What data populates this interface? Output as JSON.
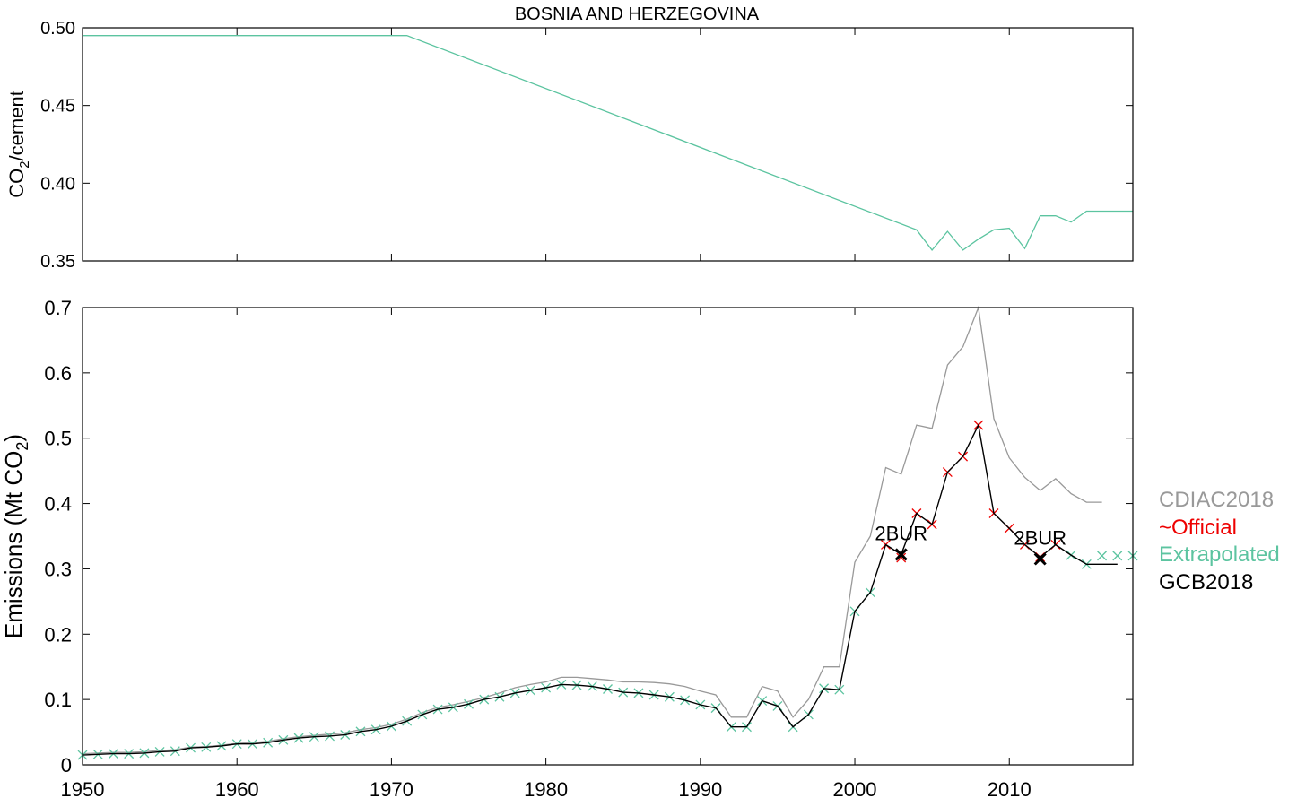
{
  "chart_data": [
    {
      "type": "line",
      "title": "BOSNIA  AND HERZEGOVINA",
      "ylabel": "CO2/cement",
      "ylabel_main": "CO",
      "ylabel_sub": "2",
      "ylabel_rest": "/cement",
      "xlim": [
        1950,
        2018
      ],
      "ylim": [
        0.35,
        0.5
      ],
      "yticks": [
        "0.35",
        "0.40",
        "0.45",
        "0.50"
      ],
      "ytick_values": [
        0.35,
        0.4,
        0.45,
        0.5
      ],
      "grid": false,
      "series": [
        {
          "color": "#5cc4a0",
          "x": [
            1950,
            1971,
            2004,
            2005,
            2006,
            2007,
            2008,
            2009,
            2010,
            2011,
            2012,
            2013,
            2014,
            2015,
            2016,
            2017,
            2018
          ],
          "y": [
            0.495,
            0.495,
            0.37,
            0.357,
            0.369,
            0.357,
            0.364,
            0.37,
            0.371,
            0.358,
            0.379,
            0.379,
            0.375,
            0.382,
            0.382,
            0.382,
            0.382
          ]
        }
      ]
    },
    {
      "type": "line",
      "ylabel": "Emissions (Mt CO2)",
      "ylabel_main": "Emissions (Mt CO",
      "ylabel_sub": "2",
      "ylabel_rest": ")",
      "xlim": [
        1950,
        2018
      ],
      "ylim": [
        0,
        0.7
      ],
      "xticks": [
        "1950",
        "1960",
        "1970",
        "1980",
        "1990",
        "2000",
        "2010"
      ],
      "xtick_values": [
        1950,
        1960,
        1970,
        1980,
        1990,
        2000,
        2010
      ],
      "yticks": [
        "0",
        "0.1",
        "0.2",
        "0.3",
        "0.4",
        "0.5",
        "0.6",
        "0.7"
      ],
      "ytick_values": [
        0,
        0.1,
        0.2,
        0.3,
        0.4,
        0.5,
        0.6,
        0.7
      ],
      "grid": false,
      "legend_position": "right",
      "series": [
        {
          "name": "CDIAC2018",
          "color": "#999999",
          "x": [
            1950,
            1951,
            1952,
            1953,
            1954,
            1955,
            1956,
            1957,
            1958,
            1959,
            1960,
            1961,
            1962,
            1963,
            1964,
            1965,
            1966,
            1967,
            1968,
            1969,
            1970,
            1971,
            1972,
            1973,
            1974,
            1975,
            1976,
            1977,
            1978,
            1979,
            1980,
            1981,
            1982,
            1983,
            1984,
            1985,
            1986,
            1987,
            1988,
            1989,
            1990,
            1991,
            1992,
            1993,
            1994,
            1995,
            1996,
            1997,
            1998,
            1999,
            2000,
            2001,
            2002,
            2003,
            2004,
            2005,
            2006,
            2007,
            2008,
            2009,
            2010,
            2011,
            2012,
            2013,
            2014,
            2015,
            2016
          ],
          "y": [
            0.017,
            0.018,
            0.019,
            0.019,
            0.02,
            0.022,
            0.023,
            0.027,
            0.028,
            0.03,
            0.033,
            0.034,
            0.036,
            0.04,
            0.043,
            0.045,
            0.047,
            0.049,
            0.054,
            0.057,
            0.062,
            0.07,
            0.08,
            0.088,
            0.092,
            0.097,
            0.103,
            0.11,
            0.118,
            0.123,
            0.127,
            0.134,
            0.134,
            0.132,
            0.13,
            0.127,
            0.127,
            0.126,
            0.124,
            0.12,
            0.113,
            0.107,
            0.073,
            0.073,
            0.12,
            0.113,
            0.073,
            0.1,
            0.15,
            0.15,
            0.31,
            0.35,
            0.455,
            0.445,
            0.52,
            0.515,
            0.612,
            0.64,
            0.7,
            0.53,
            0.47,
            0.44,
            0.42,
            0.438,
            0.415,
            0.402,
            0.402
          ]
        },
        {
          "name": "~Official",
          "color": "#ee0000",
          "x": [
            2002,
            2003,
            2004,
            2005,
            2006,
            2007,
            2008,
            2009,
            2010,
            2011,
            2012,
            2013
          ],
          "y": [
            0.337,
            0.317,
            0.385,
            0.368,
            0.448,
            0.472,
            0.52,
            0.385,
            0.362,
            0.337,
            0.318,
            0.337
          ]
        },
        {
          "name": "Extrapolated",
          "color": "#5cc4a0",
          "x": [
            1950,
            1951,
            1952,
            1953,
            1954,
            1955,
            1956,
            1957,
            1958,
            1959,
            1960,
            1961,
            1962,
            1963,
            1964,
            1965,
            1966,
            1967,
            1968,
            1969,
            1970,
            1971,
            1972,
            1973,
            1974,
            1975,
            1976,
            1977,
            1978,
            1979,
            1980,
            1981,
            1982,
            1983,
            1984,
            1985,
            1986,
            1987,
            1988,
            1989,
            1990,
            1991,
            1992,
            1993,
            1994,
            1995,
            1996,
            1997,
            1998,
            1999,
            2000,
            2001,
            2014,
            2015,
            2016,
            2017,
            2018
          ],
          "y": [
            0.015,
            0.016,
            0.017,
            0.017,
            0.018,
            0.02,
            0.021,
            0.026,
            0.027,
            0.029,
            0.032,
            0.032,
            0.034,
            0.038,
            0.041,
            0.043,
            0.044,
            0.046,
            0.051,
            0.054,
            0.059,
            0.067,
            0.077,
            0.085,
            0.088,
            0.093,
            0.1,
            0.104,
            0.11,
            0.114,
            0.118,
            0.123,
            0.122,
            0.12,
            0.116,
            0.111,
            0.11,
            0.107,
            0.104,
            0.099,
            0.092,
            0.087,
            0.058,
            0.058,
            0.098,
            0.09,
            0.058,
            0.077,
            0.117,
            0.115,
            0.235,
            0.264,
            0.321,
            0.307,
            0.32,
            0.32,
            0.32
          ]
        },
        {
          "name": "GCB2018",
          "color": "#000000",
          "x": [
            1950,
            1951,
            1952,
            1953,
            1954,
            1955,
            1956,
            1957,
            1958,
            1959,
            1960,
            1961,
            1962,
            1963,
            1964,
            1965,
            1966,
            1967,
            1968,
            1969,
            1970,
            1971,
            1972,
            1973,
            1974,
            1975,
            1976,
            1977,
            1978,
            1979,
            1980,
            1981,
            1982,
            1983,
            1984,
            1985,
            1986,
            1987,
            1988,
            1989,
            1990,
            1991,
            1992,
            1993,
            1994,
            1995,
            1996,
            1997,
            1998,
            1999,
            2000,
            2001,
            2002,
            2003,
            2004,
            2005,
            2006,
            2007,
            2008,
            2009,
            2010,
            2011,
            2012,
            2013,
            2014,
            2015,
            2016,
            2017
          ],
          "y": [
            0.015,
            0.016,
            0.017,
            0.017,
            0.018,
            0.02,
            0.021,
            0.026,
            0.027,
            0.029,
            0.032,
            0.032,
            0.034,
            0.038,
            0.041,
            0.043,
            0.044,
            0.046,
            0.051,
            0.054,
            0.059,
            0.067,
            0.077,
            0.085,
            0.088,
            0.093,
            0.1,
            0.104,
            0.11,
            0.114,
            0.118,
            0.123,
            0.122,
            0.12,
            0.116,
            0.111,
            0.11,
            0.107,
            0.104,
            0.099,
            0.092,
            0.087,
            0.058,
            0.058,
            0.098,
            0.09,
            0.058,
            0.077,
            0.117,
            0.115,
            0.235,
            0.264,
            0.337,
            0.322,
            0.385,
            0.368,
            0.448,
            0.472,
            0.52,
            0.385,
            0.362,
            0.337,
            0.318,
            0.337,
            0.321,
            0.307,
            0.307,
            0.307
          ]
        }
      ],
      "annotations": [
        {
          "text": "2BUR",
          "x": 2003,
          "y": 0.322
        },
        {
          "text": "2BUR",
          "x": 2012,
          "y": 0.315
        }
      ]
    }
  ]
}
